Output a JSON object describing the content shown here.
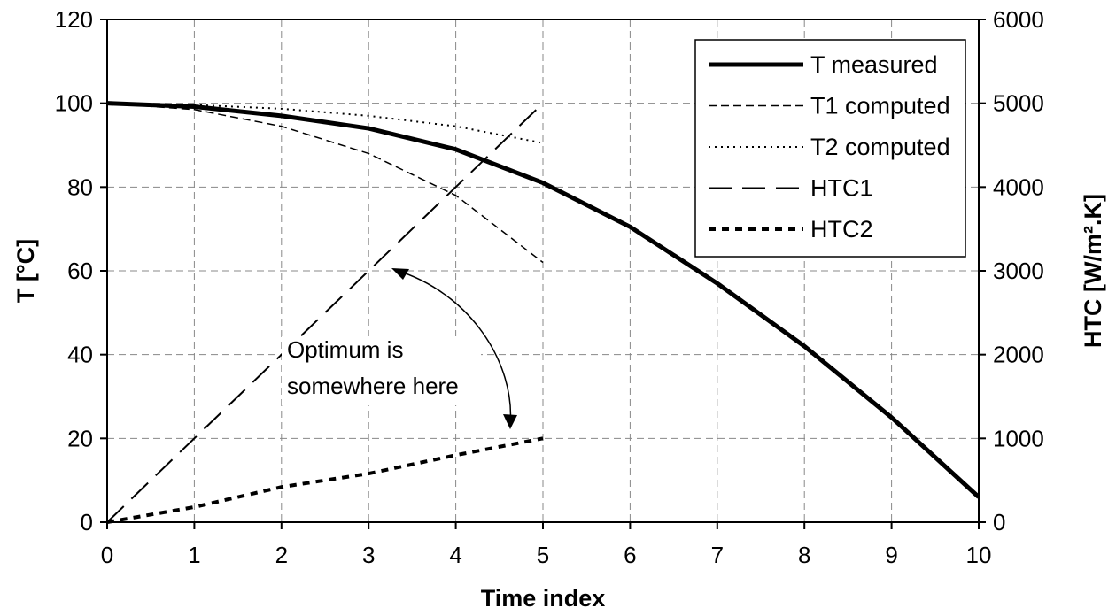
{
  "chart_data": {
    "type": "line",
    "title": "",
    "xlabel": "Time index",
    "ylabel": "T [°C]",
    "y2label": "HTC [W/m².K]",
    "xlim": [
      0,
      10
    ],
    "ylim": [
      0,
      120
    ],
    "y2lim": [
      0,
      6000
    ],
    "x_ticks": [
      0,
      1,
      2,
      3,
      4,
      5,
      6,
      7,
      8,
      9,
      10
    ],
    "y_ticks": [
      0,
      20,
      40,
      60,
      80,
      100,
      120
    ],
    "y2_ticks": [
      0,
      1000,
      2000,
      3000,
      4000,
      5000,
      6000
    ],
    "grid": true,
    "legend_position": "top-right",
    "series": [
      {
        "name": "T measured",
        "axis": "left",
        "style": "solid-thick",
        "color": "#000000",
        "x": [
          0,
          1,
          2,
          3,
          4,
          5,
          6,
          7,
          8,
          9,
          10
        ],
        "values": [
          100,
          99.2,
          97,
          94,
          89,
          81,
          70.5,
          57,
          42,
          25,
          6
        ]
      },
      {
        "name": "T1 computed",
        "axis": "left",
        "style": "dashed-thin",
        "color": "#000000",
        "x": [
          0,
          1,
          2,
          3,
          4,
          5
        ],
        "values": [
          100,
          98.5,
          94.5,
          88,
          78,
          62
        ]
      },
      {
        "name": "T2 computed",
        "axis": "left",
        "style": "dotted-thin",
        "color": "#000000",
        "x": [
          0,
          1,
          2,
          3,
          4,
          5
        ],
        "values": [
          100,
          99.6,
          98.7,
          97,
          94.5,
          90.5
        ]
      },
      {
        "name": "HTC1",
        "axis": "right",
        "style": "long-dash",
        "color": "#000000",
        "x": [
          0,
          1,
          2,
          3,
          4,
          5
        ],
        "values": [
          0,
          1000,
          2000,
          3000,
          4000,
          5000
        ]
      },
      {
        "name": "HTC2",
        "axis": "right",
        "style": "short-dash-thick",
        "color": "#000000",
        "x": [
          0,
          1,
          2,
          3,
          4,
          5
        ],
        "values": [
          0,
          180,
          420,
          580,
          800,
          1000
        ]
      }
    ],
    "annotation": {
      "text_lines": [
        "Optimum is",
        "somewhere here"
      ]
    }
  }
}
